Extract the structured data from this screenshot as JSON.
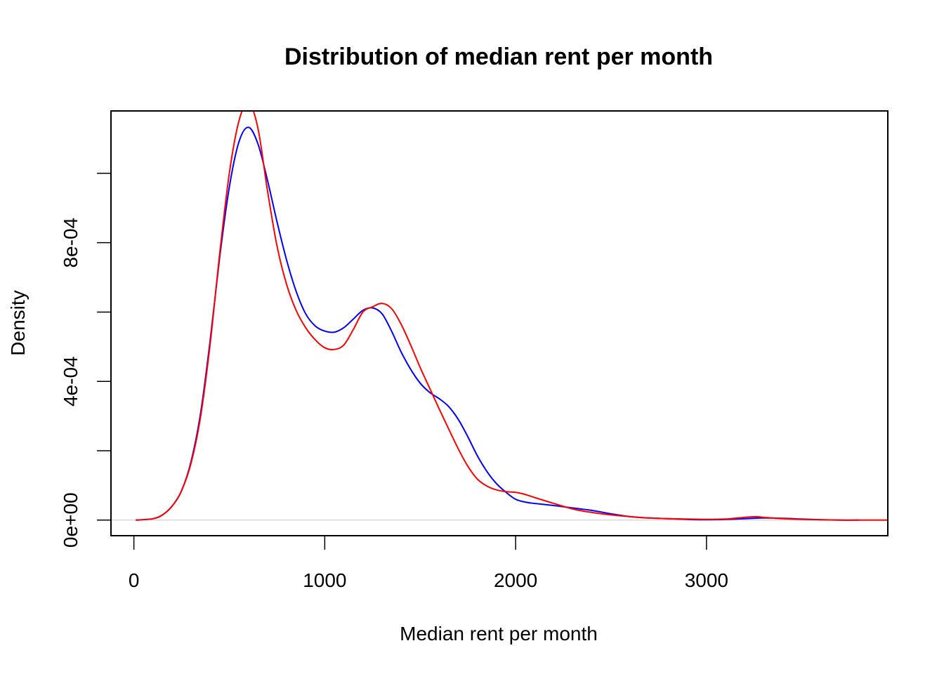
{
  "chart_data": {
    "type": "line",
    "title": "Distribution of median rent per month",
    "xlabel": "Median rent per month",
    "ylabel": "Density",
    "xlim": [
      -120,
      3950
    ],
    "ylim": [
      -4.5e-05,
      0.00118
    ],
    "xticks": [
      0,
      1000,
      2000,
      3000
    ],
    "xtick_labels": [
      "0",
      "1000",
      "2000",
      "3000"
    ],
    "yticks": [
      0,
      0.0002,
      0.0004,
      0.0006,
      0.0008,
      0.001
    ],
    "ytick_labels": [
      "0e+00",
      "",
      "4e-04",
      "",
      "8e-04",
      ""
    ],
    "baseline": 0,
    "baseline_color": "#d0d0d0",
    "grid": false,
    "series": [
      {
        "color": "#0000ff",
        "x": [
          10,
          100,
          150,
          200,
          250,
          300,
          350,
          400,
          450,
          500,
          550,
          600,
          650,
          700,
          750,
          800,
          850,
          900,
          950,
          1000,
          1050,
          1100,
          1150,
          1200,
          1250,
          1300,
          1350,
          1400,
          1450,
          1500,
          1550,
          1600,
          1650,
          1700,
          1750,
          1800,
          1850,
          1900,
          1950,
          2000,
          2050,
          2100,
          2200,
          2300,
          2400,
          2500,
          2600,
          2700,
          2800,
          2900,
          3000,
          3100,
          3200,
          3300,
          3400,
          3500,
          3600,
          3700,
          3800
        ],
        "y": [
          0,
          4e-06,
          1.5e-05,
          4e-05,
          8.5e-05,
          0.00017,
          0.00031,
          0.00052,
          0.00076,
          0.00096,
          0.00109,
          0.001133,
          0.001085,
          0.00098,
          0.00086,
          0.00075,
          0.00066,
          0.000595,
          0.00056,
          0.000545,
          0.000542,
          0.000555,
          0.00058,
          0.000605,
          0.000612,
          0.000595,
          0.000545,
          0.000485,
          0.000435,
          0.000395,
          0.000368,
          0.00035,
          0.000327,
          0.00029,
          0.00024,
          0.000185,
          0.00014,
          0.000105,
          8e-05,
          6e-05,
          5.2e-05,
          4.8e-05,
          4.2e-05,
          3.5e-05,
          2.8e-05,
          1.8e-05,
          1e-05,
          6e-06,
          4e-06,
          2e-06,
          1e-06,
          2e-06,
          4e-06,
          6e-06,
          5e-06,
          3e-06,
          1e-06,
          0,
          0
        ]
      },
      {
        "color": "#ff0000",
        "x": [
          10,
          100,
          150,
          200,
          250,
          300,
          350,
          400,
          450,
          500,
          550,
          600,
          650,
          700,
          750,
          800,
          850,
          900,
          950,
          1000,
          1050,
          1100,
          1150,
          1200,
          1250,
          1300,
          1350,
          1400,
          1450,
          1500,
          1550,
          1600,
          1650,
          1700,
          1750,
          1800,
          1850,
          1900,
          1950,
          2000,
          2050,
          2100,
          2200,
          2300,
          2400,
          2500,
          2600,
          2700,
          2800,
          2900,
          3000,
          3100,
          3200,
          3260,
          3300,
          3400,
          3500,
          3600,
          3700,
          3800,
          3950
        ],
        "y": [
          0,
          4e-06,
          1.5e-05,
          4e-05,
          8.5e-05,
          0.000165,
          0.0003,
          0.00051,
          0.00077,
          0.001,
          0.00115,
          0.001205,
          0.00113,
          0.00095,
          0.00079,
          0.00068,
          0.000605,
          0.000555,
          0.00052,
          0.000497,
          0.000492,
          0.000505,
          0.00055,
          0.0006,
          0.000615,
          0.000625,
          0.00061,
          0.000565,
          0.000505,
          0.00044,
          0.00038,
          0.00032,
          0.000262,
          0.000205,
          0.000155,
          0.000118,
          9.8e-05,
          8.7e-05,
          8.2e-05,
          8e-05,
          7.4e-05,
          6.5e-05,
          4.8e-05,
          3.2e-05,
          2.2e-05,
          1.5e-05,
          1e-05,
          6e-06,
          4e-06,
          3e-06,
          2e-06,
          3e-06,
          8e-06,
          1e-05,
          8e-06,
          4e-06,
          2e-06,
          1e-06,
          0,
          0,
          0
        ]
      }
    ]
  }
}
